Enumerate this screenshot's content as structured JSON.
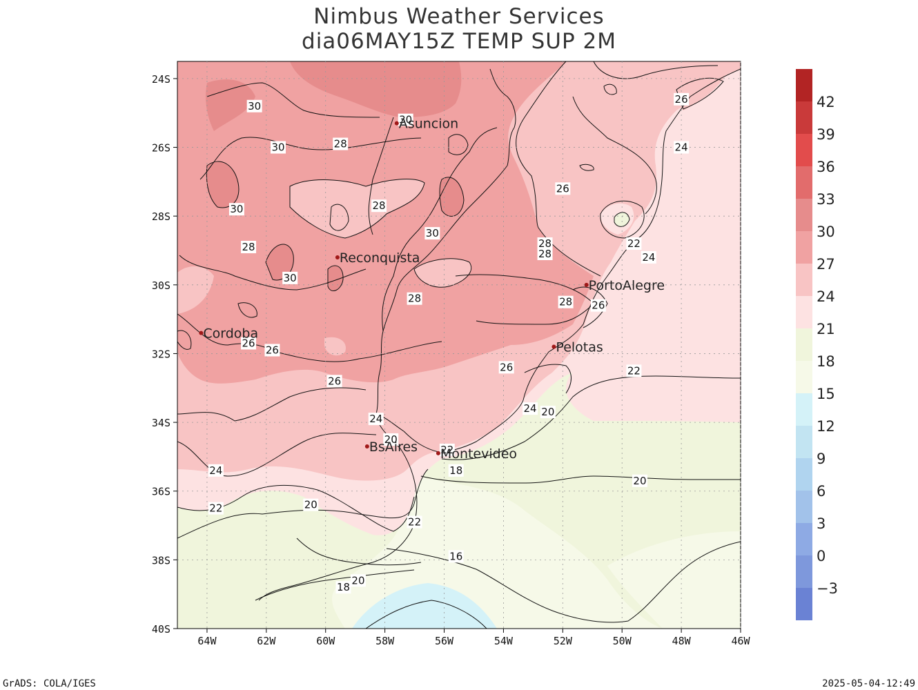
{
  "title": {
    "line1": "Nimbus Weather Services",
    "line2": "dia06MAY15Z TEMP SUP 2M"
  },
  "footer": {
    "left": "GrADS: COLA/IGES",
    "right": "2025-05-04-12:49"
  },
  "map": {
    "lon_range": [
      -65,
      -46
    ],
    "lat_range": [
      -40,
      -23.5
    ],
    "lon_ticks": [
      "64W",
      "62W",
      "60W",
      "58W",
      "56W",
      "54W",
      "52W",
      "50W",
      "48W",
      "46W"
    ],
    "lat_ticks": [
      "24S",
      "26S",
      "28S",
      "30S",
      "32S",
      "34S",
      "36S",
      "38S",
      "40S"
    ],
    "cities": [
      {
        "name": "Asuncion",
        "lon": -57.6,
        "lat": -25.3
      },
      {
        "name": "Reconquista",
        "lon": -59.6,
        "lat": -29.2
      },
      {
        "name": "Cordoba",
        "lon": -64.2,
        "lat": -31.4
      },
      {
        "name": "PortoAlegre",
        "lon": -51.2,
        "lat": -30.0
      },
      {
        "name": "Pelotas",
        "lon": -52.3,
        "lat": -31.8
      },
      {
        "name": "BsAires",
        "lon": -58.6,
        "lat": -34.7
      },
      {
        "name": "Montevideo",
        "lon": -56.2,
        "lat": -34.9
      }
    ],
    "contour_labels": [
      {
        "text": "30",
        "lon": -62.4,
        "lat": -24.8
      },
      {
        "text": "30",
        "lon": -57.3,
        "lat": -25.2
      },
      {
        "text": "30",
        "lon": -61.6,
        "lat": -26.0
      },
      {
        "text": "28",
        "lon": -59.5,
        "lat": -25.9
      },
      {
        "text": "30",
        "lon": -63.0,
        "lat": -27.8
      },
      {
        "text": "28",
        "lon": -58.2,
        "lat": -27.7
      },
      {
        "text": "30",
        "lon": -56.4,
        "lat": -28.5
      },
      {
        "text": "28",
        "lon": -62.6,
        "lat": -28.9
      },
      {
        "text": "30",
        "lon": -61.2,
        "lat": -29.8
      },
      {
        "text": "28",
        "lon": -52.6,
        "lat": -28.8
      },
      {
        "text": "28",
        "lon": -52.6,
        "lat": -29.1
      },
      {
        "text": "28",
        "lon": -57.0,
        "lat": -30.4
      },
      {
        "text": "28",
        "lon": -51.9,
        "lat": -30.5
      },
      {
        "text": "26",
        "lon": -62.6,
        "lat": -31.7
      },
      {
        "text": "26",
        "lon": -61.8,
        "lat": -31.9
      },
      {
        "text": "26",
        "lon": -59.7,
        "lat": -32.8
      },
      {
        "text": "26",
        "lon": -53.9,
        "lat": -32.4
      },
      {
        "text": "24",
        "lon": -58.3,
        "lat": -33.9
      },
      {
        "text": "24",
        "lon": -53.1,
        "lat": -33.6
      },
      {
        "text": "20",
        "lon": -57.8,
        "lat": -34.5
      },
      {
        "text": "22",
        "lon": -55.9,
        "lat": -34.8
      },
      {
        "text": "20",
        "lon": -52.5,
        "lat": -33.7
      },
      {
        "text": "18",
        "lon": -55.6,
        "lat": -35.4
      },
      {
        "text": "24",
        "lon": -63.7,
        "lat": -35.4
      },
      {
        "text": "22",
        "lon": -63.7,
        "lat": -36.5
      },
      {
        "text": "20",
        "lon": -60.5,
        "lat": -36.4
      },
      {
        "text": "22",
        "lon": -57.0,
        "lat": -36.9
      },
      {
        "text": "16",
        "lon": -55.6,
        "lat": -37.9
      },
      {
        "text": "18",
        "lon": -59.4,
        "lat": -38.8
      },
      {
        "text": "20",
        "lon": -58.9,
        "lat": -38.6
      },
      {
        "text": "22",
        "lon": -49.6,
        "lat": -32.5
      },
      {
        "text": "20",
        "lon": -49.4,
        "lat": -35.7
      },
      {
        "text": "26",
        "lon": -50.8,
        "lat": -30.6
      },
      {
        "text": "24",
        "lon": -49.1,
        "lat": -29.2
      },
      {
        "text": "22",
        "lon": -49.6,
        "lat": -28.8
      },
      {
        "text": "26",
        "lon": -52.0,
        "lat": -27.2
      },
      {
        "text": "24",
        "lon": -48.0,
        "lat": -26.0
      },
      {
        "text": "26",
        "lon": -48.0,
        "lat": -24.6
      }
    ]
  },
  "colorbar": {
    "labels": [
      "42",
      "39",
      "36",
      "33",
      "30",
      "27",
      "24",
      "21",
      "18",
      "15",
      "12",
      "9",
      "6",
      "3",
      "0",
      "−3"
    ],
    "colors": [
      "#b22424",
      "#c93a3a",
      "#e24c4c",
      "#e26c6c",
      "#e68c8c",
      "#f0a2a2",
      "#f8c4c4",
      "#fde2e2",
      "#f0f5dc",
      "#f6f9e8",
      "#d4f2f8",
      "#c2e4f2",
      "#b0d4ef",
      "#a2c2ea",
      "#8eaae4",
      "#7e98dc",
      "#6a82d4"
    ]
  },
  "field_colors": {
    "c16": "#f6f9e8",
    "c18": "#f0f5dc",
    "c21": "#fde2e2",
    "c24": "#f8c4c4",
    "c27": "#f0a2a2",
    "c30": "#e68c8c",
    "c12": "#d4f2f8"
  }
}
